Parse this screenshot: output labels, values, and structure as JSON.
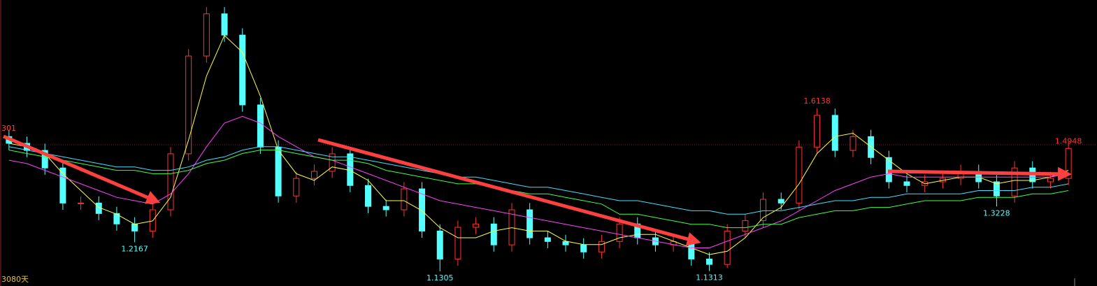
{
  "chart_data": {
    "type": "candlestick",
    "left_label": "301",
    "period_label": "3080天",
    "ylim": [
      1.087,
      1.935
    ],
    "up_color": "#ff3232",
    "down_color": "#54ffff",
    "categories": [
      null,
      null,
      null,
      null,
      null,
      null,
      null,
      null,
      null,
      null,
      null,
      null,
      null,
      null,
      null,
      null,
      null,
      null,
      null,
      null,
      null,
      null,
      null,
      null,
      null,
      null,
      null,
      null,
      null,
      null,
      null,
      null,
      null,
      null,
      null,
      null,
      null,
      null,
      null,
      null,
      null,
      null,
      null,
      null,
      null,
      null,
      null,
      null,
      null,
      null,
      null,
      null,
      null,
      null,
      null,
      null,
      null,
      null,
      null,
      null
    ],
    "open": [
      1.53,
      1.51,
      1.489,
      1.437,
      1.333,
      1.333,
      1.302,
      1.271,
      1.25,
      1.313,
      1.479,
      1.769,
      1.894,
      1.831,
      1.624,
      1.499,
      1.354,
      1.406,
      1.427,
      1.479,
      1.385,
      1.323,
      1.313,
      1.375,
      1.25,
      1.167,
      1.261,
      1.271,
      1.209,
      1.313,
      1.23,
      1.219,
      1.209,
      1.188,
      1.219,
      1.271,
      1.23,
      1.209,
      1.219,
      1.167,
      1.151,
      1.25,
      1.281,
      1.344,
      1.333,
      1.499,
      1.593,
      1.489,
      1.53,
      1.468,
      1.396,
      1.385,
      1.396,
      1.406,
      1.427,
      1.396,
      1.354,
      1.437,
      1.396,
      1.406
    ],
    "high": [
      1.55,
      1.53,
      1.509,
      1.457,
      1.353,
      1.353,
      1.322,
      1.291,
      1.333,
      1.499,
      1.789,
      1.914,
      1.914,
      1.851,
      1.644,
      1.519,
      1.426,
      1.447,
      1.499,
      1.499,
      1.405,
      1.343,
      1.395,
      1.395,
      1.27,
      1.281,
      1.291,
      1.291,
      1.333,
      1.333,
      1.25,
      1.239,
      1.229,
      1.239,
      1.291,
      1.291,
      1.25,
      1.239,
      1.239,
      1.187,
      1.27,
      1.301,
      1.364,
      1.364,
      1.519,
      1.6138,
      1.613,
      1.55,
      1.55,
      1.488,
      1.416,
      1.416,
      1.426,
      1.447,
      1.447,
      1.416,
      1.457,
      1.457,
      1.426,
      1.515
    ],
    "low": [
      1.49,
      1.469,
      1.417,
      1.313,
      1.313,
      1.282,
      1.251,
      1.2167,
      1.23,
      1.293,
      1.459,
      1.749,
      1.811,
      1.604,
      1.479,
      1.334,
      1.334,
      1.386,
      1.407,
      1.365,
      1.303,
      1.293,
      1.293,
      1.23,
      1.1305,
      1.147,
      1.241,
      1.189,
      1.189,
      1.21,
      1.199,
      1.189,
      1.168,
      1.168,
      1.199,
      1.21,
      1.189,
      1.189,
      1.147,
      1.1313,
      1.14,
      1.23,
      1.261,
      1.313,
      1.313,
      1.479,
      1.469,
      1.469,
      1.448,
      1.376,
      1.365,
      1.365,
      1.376,
      1.386,
      1.376,
      1.3228,
      1.334,
      1.376,
      1.376,
      1.386
    ],
    "close": [
      1.51,
      1.489,
      1.437,
      1.333,
      1.333,
      1.302,
      1.271,
      1.25,
      1.313,
      1.479,
      1.769,
      1.894,
      1.831,
      1.624,
      1.499,
      1.354,
      1.406,
      1.427,
      1.479,
      1.385,
      1.323,
      1.313,
      1.375,
      1.25,
      1.167,
      1.261,
      1.271,
      1.209,
      1.313,
      1.23,
      1.219,
      1.209,
      1.188,
      1.219,
      1.271,
      1.23,
      1.209,
      1.219,
      1.167,
      1.151,
      1.25,
      1.281,
      1.344,
      1.333,
      1.499,
      1.593,
      1.489,
      1.53,
      1.468,
      1.396,
      1.385,
      1.396,
      1.406,
      1.427,
      1.396,
      1.354,
      1.437,
      1.396,
      1.406,
      1.4948
    ],
    "series": [
      {
        "color": "#ffff40",
        "values": [
          1.51,
          1.5,
          1.48,
          1.42,
          1.37,
          1.32,
          1.3,
          1.27,
          1.28,
          1.35,
          1.52,
          1.71,
          1.83,
          1.78,
          1.65,
          1.49,
          1.42,
          1.4,
          1.44,
          1.43,
          1.4,
          1.34,
          1.34,
          1.31,
          1.26,
          1.23,
          1.23,
          1.25,
          1.26,
          1.25,
          1.25,
          1.22,
          1.21,
          1.21,
          1.23,
          1.24,
          1.24,
          1.22,
          1.2,
          1.18,
          1.19,
          1.23,
          1.29,
          1.32,
          1.39,
          1.48,
          1.53,
          1.54,
          1.5,
          1.46,
          1.42,
          1.39,
          1.4,
          1.41,
          1.41,
          1.39,
          1.4,
          1.4,
          1.41,
          1.43
        ]
      },
      {
        "color": "#ff40ff",
        "values": [
          1.46,
          1.45,
          1.43,
          1.41,
          1.39,
          1.37,
          1.35,
          1.34,
          1.33,
          1.36,
          1.42,
          1.5,
          1.57,
          1.59,
          1.57,
          1.53,
          1.5,
          1.47,
          1.46,
          1.44,
          1.42,
          1.4,
          1.38,
          1.36,
          1.34,
          1.33,
          1.32,
          1.31,
          1.3,
          1.29,
          1.28,
          1.27,
          1.26,
          1.25,
          1.24,
          1.23,
          1.22,
          1.21,
          1.2,
          1.2,
          1.22,
          1.24,
          1.26,
          1.28,
          1.31,
          1.34,
          1.37,
          1.39,
          1.41,
          1.42,
          1.41,
          1.41,
          1.41,
          1.41,
          1.41,
          1.41,
          1.41,
          1.41,
          1.41,
          1.42
        ]
      },
      {
        "color": "#40ff40",
        "values": [
          1.49,
          1.48,
          1.47,
          1.46,
          1.45,
          1.44,
          1.43,
          1.43,
          1.42,
          1.42,
          1.43,
          1.45,
          1.46,
          1.48,
          1.49,
          1.49,
          1.48,
          1.47,
          1.46,
          1.46,
          1.45,
          1.43,
          1.42,
          1.41,
          1.4,
          1.39,
          1.39,
          1.38,
          1.37,
          1.36,
          1.36,
          1.35,
          1.34,
          1.33,
          1.3,
          1.3,
          1.29,
          1.28,
          1.27,
          1.27,
          1.26,
          1.26,
          1.27,
          1.27,
          1.29,
          1.3,
          1.31,
          1.31,
          1.32,
          1.32,
          1.33,
          1.34,
          1.34,
          1.34,
          1.35,
          1.35,
          1.35,
          1.36,
          1.36,
          1.37
        ]
      },
      {
        "color": "#40e0ff",
        "values": [
          1.5,
          1.49,
          1.48,
          1.47,
          1.46,
          1.45,
          1.44,
          1.44,
          1.43,
          1.43,
          1.44,
          1.46,
          1.47,
          1.49,
          1.5,
          1.5,
          1.49,
          1.48,
          1.47,
          1.47,
          1.46,
          1.45,
          1.44,
          1.43,
          1.42,
          1.41,
          1.41,
          1.4,
          1.39,
          1.38,
          1.38,
          1.37,
          1.36,
          1.35,
          1.34,
          1.34,
          1.33,
          1.32,
          1.31,
          1.31,
          1.3,
          1.3,
          1.31,
          1.31,
          1.32,
          1.33,
          1.34,
          1.34,
          1.35,
          1.35,
          1.36,
          1.36,
          1.36,
          1.36,
          1.37,
          1.37,
          1.37,
          1.38,
          1.38,
          1.39
        ]
      }
    ],
    "annotations": [
      {
        "label": "1.2167",
        "value": 1.2167
      },
      {
        "label": "1.1305",
        "value": 1.1305
      },
      {
        "label": "1.1313",
        "value": 1.1313
      },
      {
        "label": "1.6138",
        "value": 1.6138
      },
      {
        "label": "1.3228",
        "value": 1.3228
      },
      {
        "label": "1.4948",
        "value": 1.4948
      }
    ]
  }
}
